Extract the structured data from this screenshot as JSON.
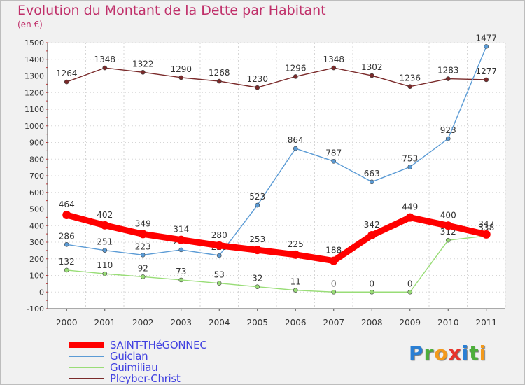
{
  "title": "Evolution du Montant de la Dette par Habitant",
  "subtitle": "(en €)",
  "chart_data": {
    "type": "line",
    "title": "Evolution du Montant de la Dette par Habitant",
    "ylabel": "(en €)",
    "xlabel": "",
    "x": [
      "2000",
      "2001",
      "2002",
      "2003",
      "2004",
      "2005",
      "2006",
      "2007",
      "2008",
      "2009",
      "2010",
      "2011"
    ],
    "ylim": [
      -100,
      1500
    ],
    "yticks": [
      -100,
      0,
      100,
      200,
      300,
      400,
      500,
      600,
      700,
      800,
      900,
      1000,
      1100,
      1200,
      1300,
      1400,
      1500
    ],
    "grid": true,
    "legend": "bottom-left",
    "series": [
      {
        "name": "Pleyber-Christ",
        "color": "#7a2a2a",
        "values": [
          1264,
          1348,
          1322,
          1290,
          1268,
          1230,
          1296,
          1348,
          1302,
          1236,
          1283,
          1277
        ]
      },
      {
        "name": "Guiclan",
        "color": "#5b9bd5",
        "values": [
          286,
          251,
          223,
          254,
          220,
          523,
          864,
          787,
          663,
          753,
          923,
          1477
        ]
      },
      {
        "name": "Guimiliau",
        "color": "#99dd77",
        "values": [
          132,
          110,
          92,
          73,
          53,
          32,
          11,
          0,
          0,
          0,
          312,
          338
        ]
      },
      {
        "name": "SAINT-THéGONNEC",
        "color": "#ff0000",
        "values": [
          464,
          402,
          349,
          314,
          280,
          253,
          225,
          188,
          342,
          449,
          400,
          347
        ]
      }
    ],
    "data_labels": {
      "Pleyber-Christ": [
        "1264",
        "1348",
        "1322",
        "1290",
        "1268",
        "1230",
        "1296",
        "1348",
        "1302",
        "1236",
        "1283",
        "1277"
      ],
      "Guiclan": [
        "286",
        "251",
        "223",
        "254",
        "220",
        "523",
        "864",
        "787",
        "663",
        "753",
        "923",
        "1477"
      ],
      "Guimiliau": [
        "132",
        "110",
        "92",
        "73",
        "53",
        "32",
        "11",
        "0",
        "0",
        "0",
        "312",
        "338"
      ],
      "SAINT-THéGONNEC": [
        "464",
        "402",
        "349",
        "314",
        "280",
        "253",
        "225",
        "188",
        "342",
        "449",
        "400",
        "347"
      ]
    }
  },
  "legend": {
    "items": [
      {
        "label": "SAINT-THéGONNEC",
        "color": "#ff0000",
        "width": 8
      },
      {
        "label": "Guiclan",
        "color": "#5b9bd5",
        "width": 2
      },
      {
        "label": "Guimiliau",
        "color": "#99dd77",
        "width": 2
      },
      {
        "label": "Pleyber-Christ",
        "color": "#7a2a2a",
        "width": 2
      }
    ]
  },
  "logo": {
    "text": "Proxiti",
    "letters": [
      {
        "ch": "P",
        "color": "#2a7fd4"
      },
      {
        "ch": "r",
        "color": "#4cae3a"
      },
      {
        "ch": "o",
        "color": "#f39a1c"
      },
      {
        "ch": "x",
        "color": "#e8332b"
      },
      {
        "ch": "i",
        "color": "#2a7fd4"
      },
      {
        "ch": "t",
        "color": "#4cae3a"
      },
      {
        "ch": "i",
        "color": "#f39a1c"
      }
    ]
  }
}
